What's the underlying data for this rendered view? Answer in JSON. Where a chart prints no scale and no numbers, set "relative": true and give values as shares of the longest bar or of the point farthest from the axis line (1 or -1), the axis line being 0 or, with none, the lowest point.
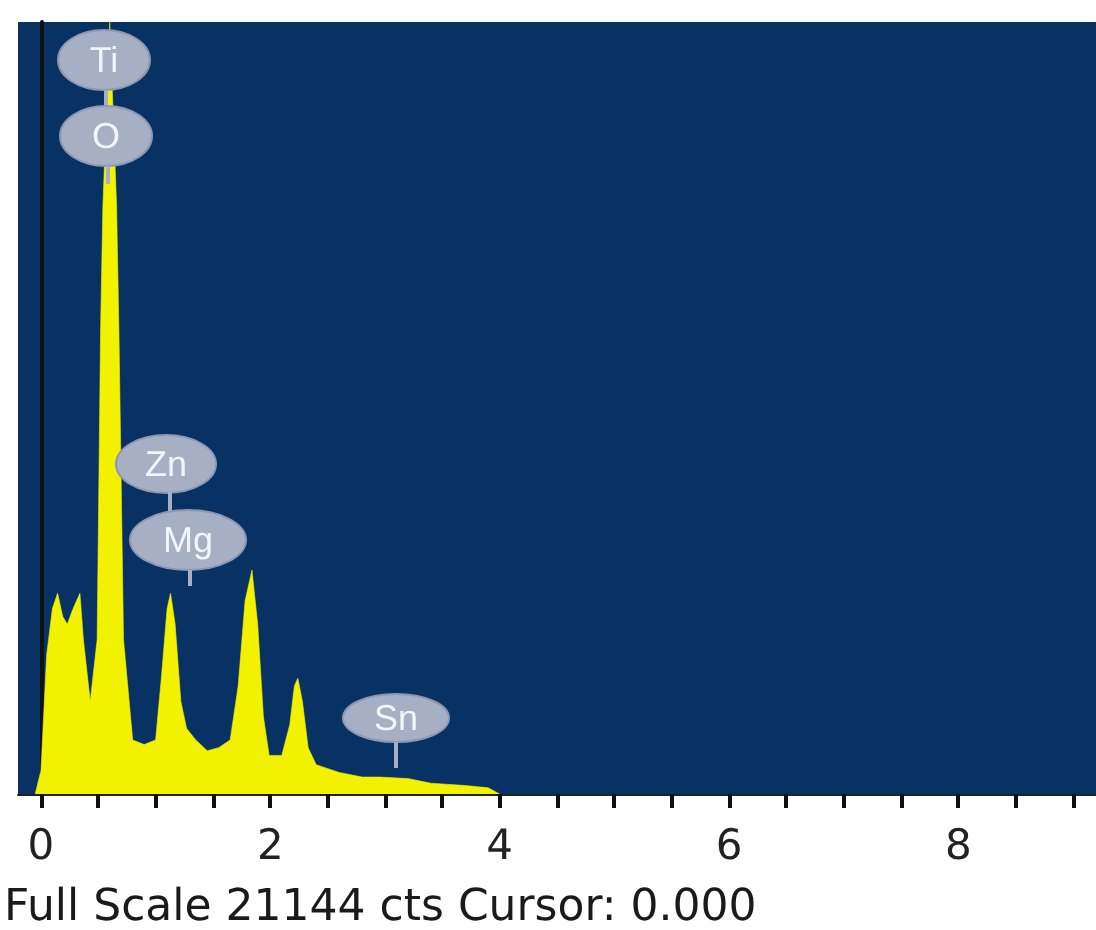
{
  "chart_data": {
    "type": "area",
    "relative": true,
    "x": [
      -0.05,
      0,
      0.05,
      0.1,
      0.145,
      0.19,
      0.23,
      0.28,
      0.34,
      0.37,
      0.43,
      0.49,
      0.52,
      0.54,
      0.6,
      0.66,
      0.68,
      0.72,
      0.8,
      0.9,
      1.0,
      1.05,
      1.1,
      1.13,
      1.17,
      1.22,
      1.27,
      1.35,
      1.45,
      1.55,
      1.65,
      1.72,
      1.78,
      1.84,
      1.89,
      1.94,
      1.99,
      2.1,
      2.17,
      2.21,
      2.24,
      2.28,
      2.33,
      2.4,
      2.6,
      2.8,
      2.95,
      3.2,
      3.4,
      3.7,
      3.9,
      4.0
    ],
    "series": [
      {
        "color": "#f2f200",
        "values": [
          0,
          0.03,
          0.18,
          0.24,
          0.26,
          0.23,
          0.22,
          0.24,
          0.26,
          0.2,
          0.12,
          0.2,
          0.6,
          0.76,
          1,
          0.76,
          0.6,
          0.2,
          0.07,
          0.064,
          0.07,
          0.15,
          0.24,
          0.26,
          0.22,
          0.12,
          0.085,
          0.07,
          0.056,
          0.06,
          0.07,
          0.14,
          0.25,
          0.29,
          0.22,
          0.1,
          0.05,
          0.05,
          0.09,
          0.14,
          0.15,
          0.12,
          0.06,
          0.038,
          0.028,
          0.022,
          0.022,
          0.02,
          0.014,
          0.011,
          0.008,
          0
        ]
      }
    ],
    "xlim": [
      -0.2,
      9.2
    ],
    "xticks": [
      0,
      {
        "value": 0.5,
        "label": null
      },
      {
        "value": 1,
        "label": null
      },
      {
        "value": 1.5,
        "label": null
      },
      2,
      {
        "value": 2.5,
        "label": null
      },
      {
        "value": 3,
        "label": null
      },
      {
        "value": 3.5,
        "label": null
      },
      4,
      {
        "value": 4.5,
        "label": null
      },
      {
        "value": 5,
        "label": null
      },
      {
        "value": 5.5,
        "label": null
      },
      6,
      {
        "value": 6.5,
        "label": null
      },
      {
        "value": 7,
        "label": null
      },
      {
        "value": 7.5,
        "label": null
      },
      8,
      {
        "value": 8.5,
        "label": null
      },
      {
        "value": 9,
        "label": null
      }
    ],
    "annotations": [
      "Ti",
      "O",
      "Zn",
      "Mg",
      "Sn",
      "Full Scale 21144 cts Cursor: 0.000"
    ]
  }
}
